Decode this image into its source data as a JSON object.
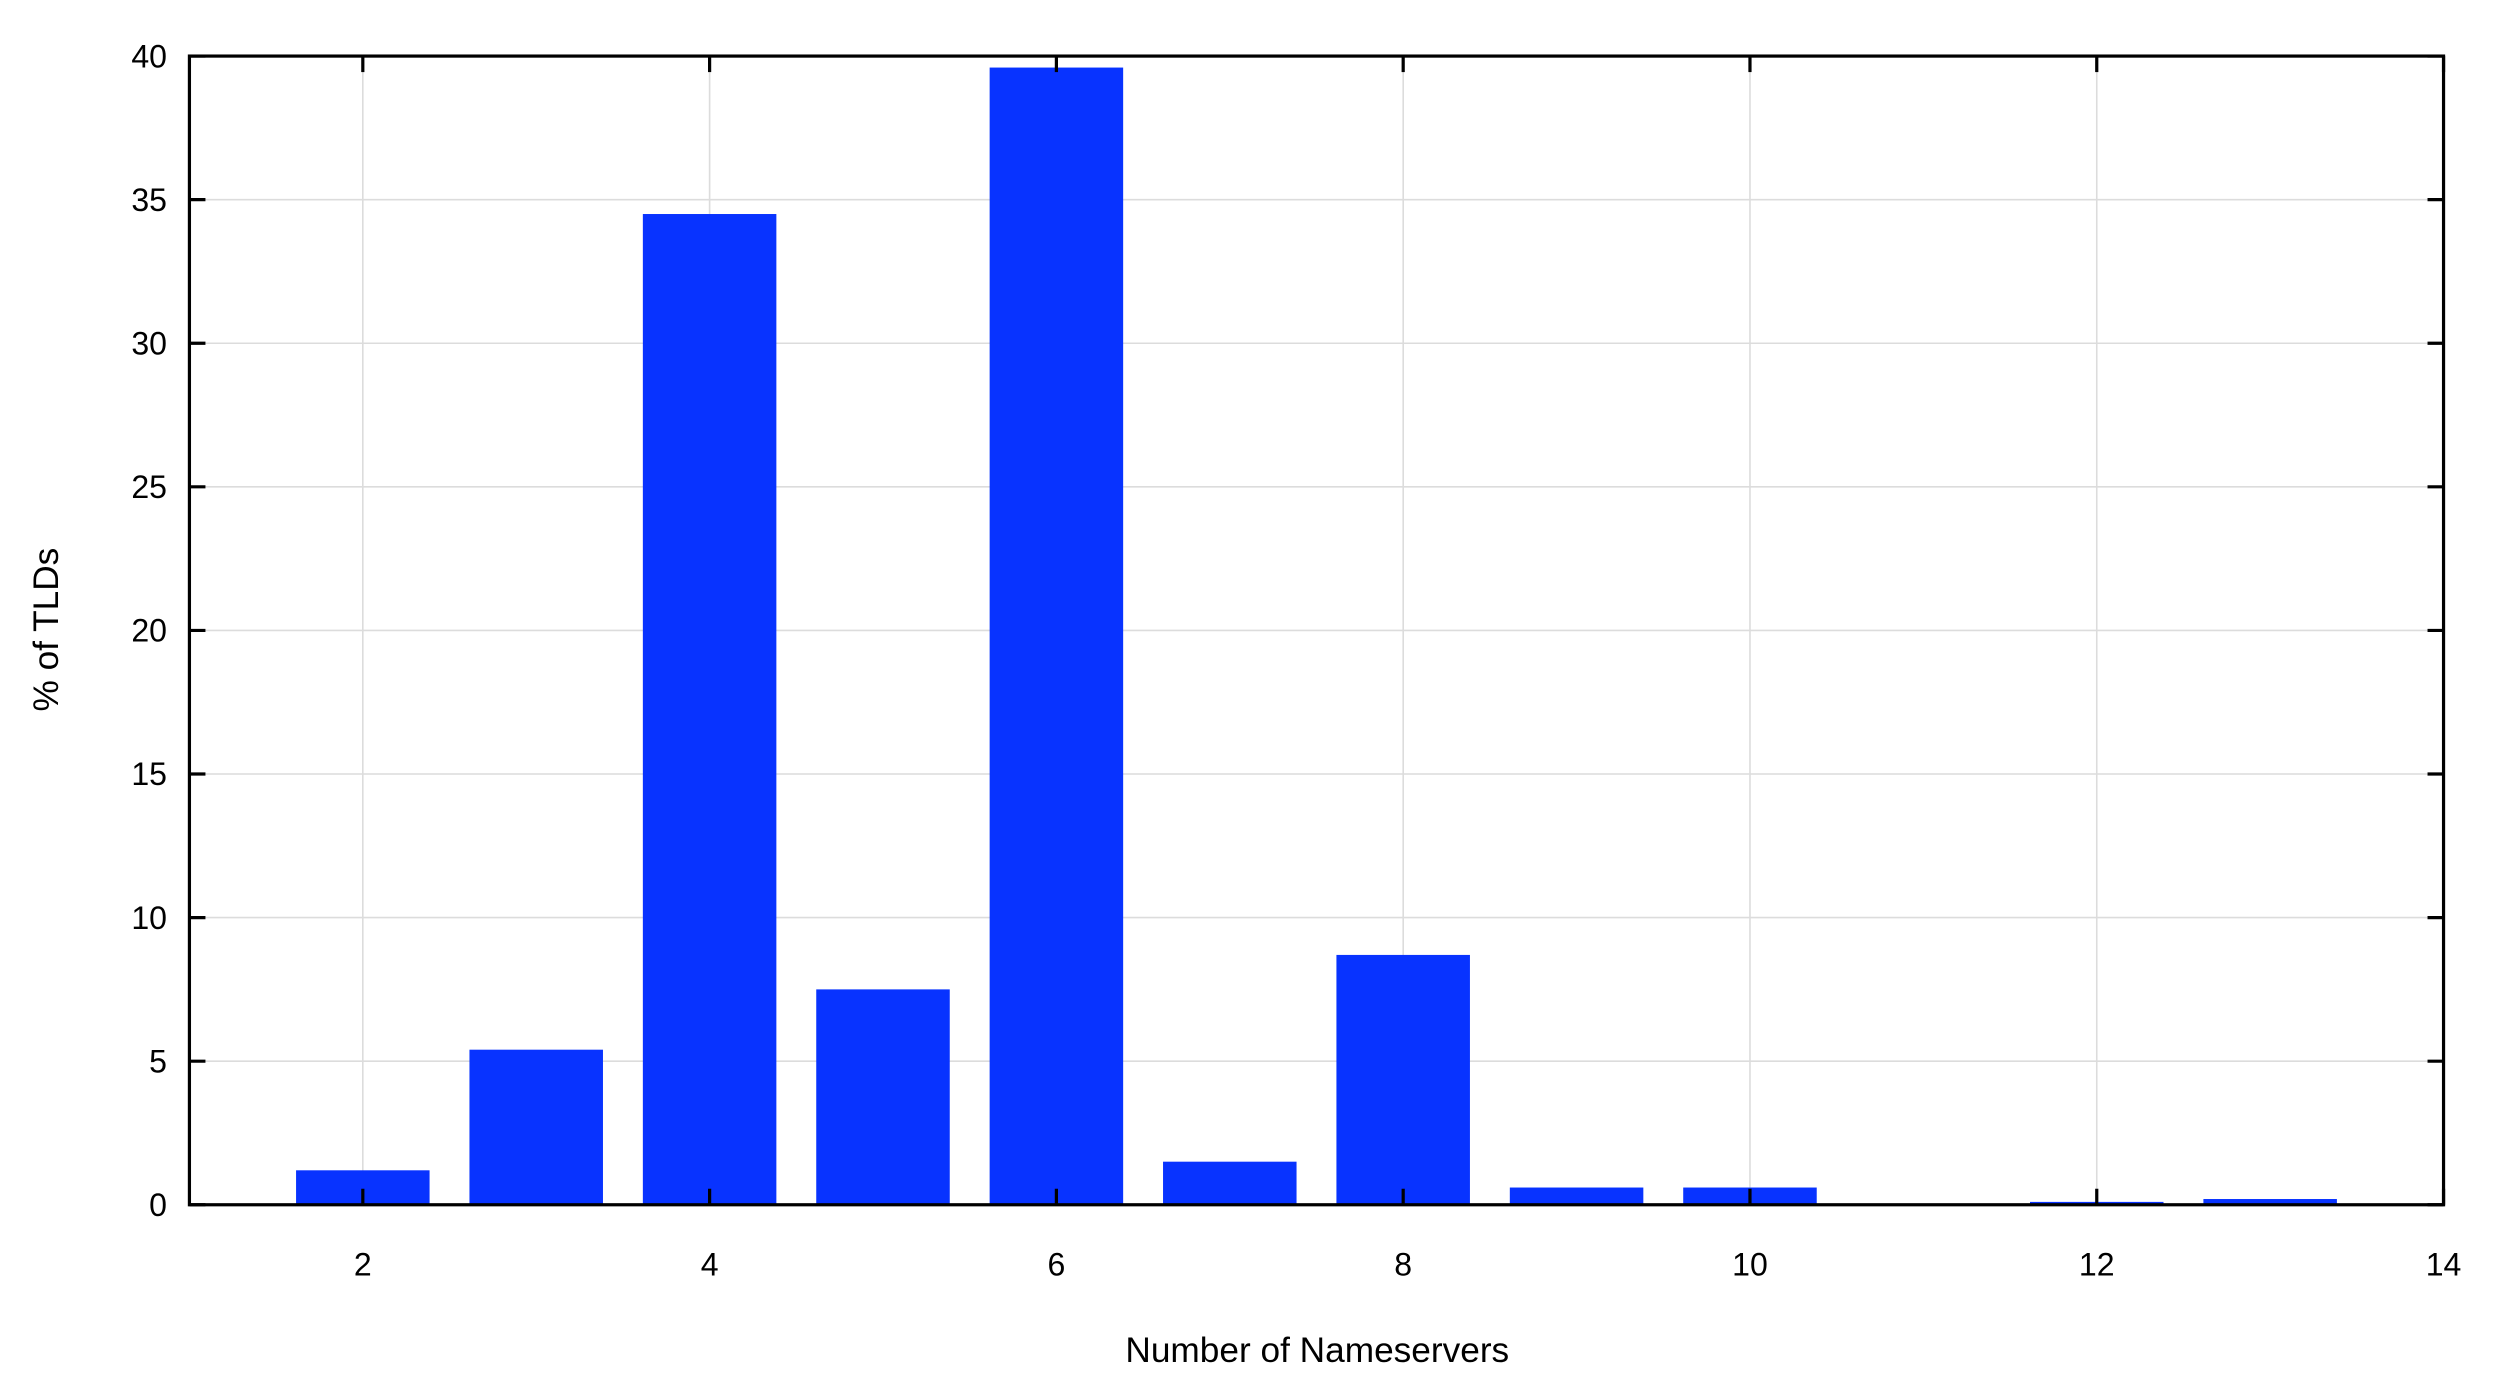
{
  "chart_data": {
    "type": "bar",
    "title": "",
    "xlabel": "Number of Nameservers",
    "ylabel": "% of TLDs",
    "x": [
      2,
      3,
      4,
      5,
      6,
      7,
      8,
      9,
      10,
      11,
      12,
      13
    ],
    "values": [
      1.2,
      5.4,
      34.5,
      7.5,
      39.6,
      1.5,
      8.7,
      0.6,
      0.6,
      0,
      0.1,
      0.2
    ],
    "xlim": [
      1,
      14
    ],
    "ylim": [
      0,
      40
    ],
    "xticks": [
      "2",
      "4",
      "6",
      "8",
      "10",
      "12",
      "14"
    ],
    "yticks": [
      "0",
      "5",
      "10",
      "15",
      "20",
      "25",
      "30",
      "35",
      "40"
    ],
    "bar_width": 0.77,
    "grid": true,
    "legend": "none",
    "bar_color": "#0833ff"
  }
}
